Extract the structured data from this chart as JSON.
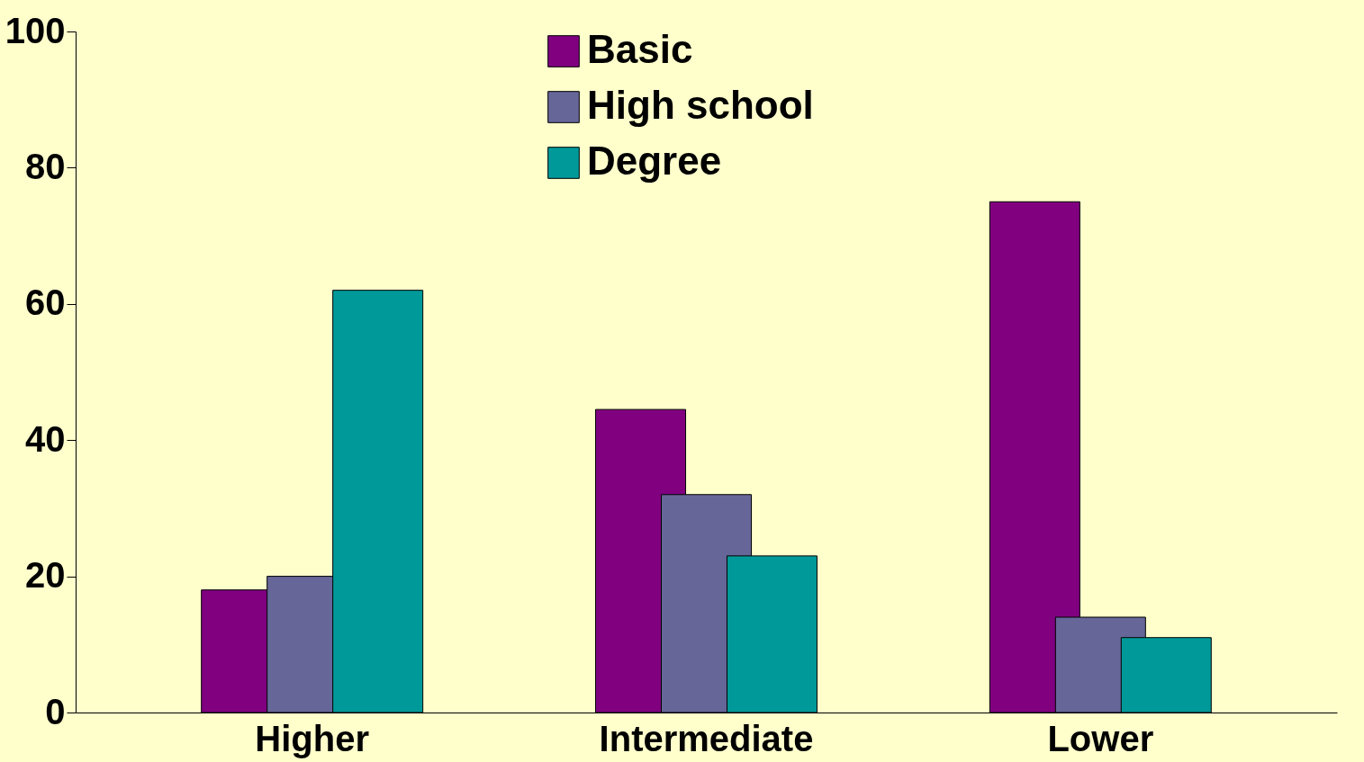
{
  "chart_data": {
    "type": "bar",
    "categories": [
      "Higher",
      "Intermediate",
      "Lower"
    ],
    "series": [
      {
        "name": "Basic",
        "color": "#800080",
        "values": [
          18,
          44.5,
          75
        ]
      },
      {
        "name": "High school",
        "color": "#666699",
        "values": [
          20,
          32,
          14
        ]
      },
      {
        "name": "Degree",
        "color": "#009999",
        "values": [
          62,
          23,
          11
        ]
      }
    ],
    "ylim": [
      0,
      100
    ],
    "yticks": [
      0,
      20,
      40,
      60,
      80,
      100
    ],
    "grid": false,
    "legend": "top"
  }
}
